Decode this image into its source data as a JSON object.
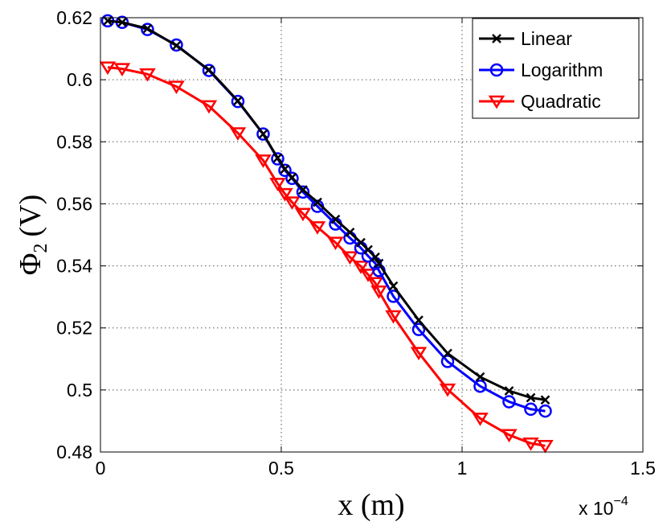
{
  "chart_data": {
    "type": "line",
    "title": "",
    "xlabel": "x (m)",
    "ylabel": "Φ",
    "ylabel_subscript": "2",
    "ylabel_unit": "(V)",
    "x_exponent_label": "x 10",
    "x_exponent_power": "−4",
    "xlim": [
      0,
      1.5
    ],
    "ylim": [
      0.48,
      0.62
    ],
    "x_ticks": [
      0,
      0.5,
      1,
      1.5
    ],
    "x_tick_labels": [
      "0",
      "0.5",
      "1",
      "1.5"
    ],
    "y_ticks": [
      0.48,
      0.5,
      0.52,
      0.54,
      0.56,
      0.58,
      0.6,
      0.62
    ],
    "y_tick_labels": [
      "0.48",
      "0.5",
      "0.52",
      "0.54",
      "0.56",
      "0.58",
      "0.6",
      "0.62"
    ],
    "grid": true,
    "legend_position": "top-right",
    "series": [
      {
        "name": "Linear",
        "color": "#000000",
        "marker": "x",
        "x": [
          0.02,
          0.06,
          0.13,
          0.21,
          0.3,
          0.38,
          0.45,
          0.49,
          0.51,
          0.53,
          0.56,
          0.6,
          0.65,
          0.69,
          0.72,
          0.74,
          0.76,
          0.77,
          0.81,
          0.88,
          0.96,
          1.05,
          1.13,
          1.19,
          1.23
        ],
        "values": [
          0.619,
          0.6185,
          0.6165,
          0.611,
          0.6032,
          0.5932,
          0.5825,
          0.5748,
          0.5712,
          0.5685,
          0.5645,
          0.5605,
          0.555,
          0.5508,
          0.5475,
          0.5452,
          0.5428,
          0.5408,
          0.5335,
          0.5225,
          0.5118,
          0.5042,
          0.4997,
          0.4975,
          0.4968
        ]
      },
      {
        "name": "Logarithm",
        "color": "#0000ff",
        "marker": "o",
        "x": [
          0.02,
          0.06,
          0.13,
          0.21,
          0.3,
          0.38,
          0.45,
          0.49,
          0.51,
          0.53,
          0.56,
          0.6,
          0.65,
          0.69,
          0.72,
          0.74,
          0.76,
          0.77,
          0.81,
          0.88,
          0.96,
          1.05,
          1.13,
          1.19,
          1.23
        ],
        "values": [
          0.619,
          0.6185,
          0.6162,
          0.6112,
          0.603,
          0.593,
          0.5825,
          0.5745,
          0.5708,
          0.5682,
          0.5638,
          0.5592,
          0.5535,
          0.549,
          0.5458,
          0.5432,
          0.5408,
          0.5385,
          0.5302,
          0.5195,
          0.5092,
          0.5012,
          0.4962,
          0.4938,
          0.4932
        ]
      },
      {
        "name": "Quadratic",
        "color": "#ff0000",
        "marker": "v",
        "x": [
          0.02,
          0.06,
          0.13,
          0.21,
          0.3,
          0.38,
          0.45,
          0.49,
          0.51,
          0.53,
          0.56,
          0.6,
          0.65,
          0.69,
          0.72,
          0.74,
          0.76,
          0.77,
          0.81,
          0.88,
          0.96,
          1.05,
          1.13,
          1.19,
          1.23
        ],
        "values": [
          0.604,
          0.6035,
          0.6018,
          0.5978,
          0.5915,
          0.5828,
          0.574,
          0.5665,
          0.5632,
          0.5605,
          0.5568,
          0.5525,
          0.5475,
          0.5428,
          0.5398,
          0.5372,
          0.5345,
          0.5318,
          0.5238,
          0.512,
          0.5002,
          0.4908,
          0.4855,
          0.4828,
          0.482
        ]
      }
    ]
  }
}
